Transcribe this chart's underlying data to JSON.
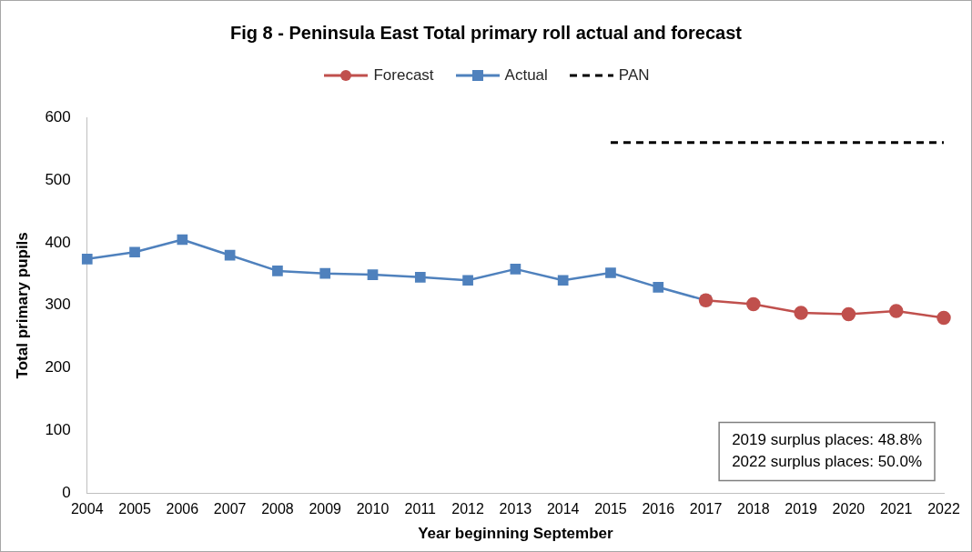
{
  "chart_data": {
    "type": "line",
    "title": "Fig 8 - Peninsula East Total primary roll actual and forecast",
    "xlabel": "Year beginning September",
    "ylabel": "Total primary pupils",
    "categories": [
      "2004",
      "2005",
      "2006",
      "2007",
      "2008",
      "2009",
      "2010",
      "2011",
      "2012",
      "2013",
      "2014",
      "2015",
      "2016",
      "2017",
      "2018",
      "2019",
      "2020",
      "2021",
      "2022"
    ],
    "series": [
      {
        "name": "Forecast",
        "color": "#c0504d",
        "marker": "circle",
        "line_style": "solid",
        "values": [
          null,
          null,
          null,
          null,
          null,
          null,
          null,
          null,
          null,
          null,
          null,
          null,
          null,
          308,
          302,
          288,
          286,
          291,
          280
        ]
      },
      {
        "name": "Actual",
        "color": "#4f81bd",
        "marker": "square",
        "line_style": "solid",
        "values": [
          374,
          385,
          405,
          380,
          355,
          351,
          349,
          345,
          340,
          358,
          340,
          352,
          329,
          308,
          null,
          null,
          null,
          null,
          null
        ]
      },
      {
        "name": "PAN",
        "color": "#000000",
        "marker": "none",
        "line_style": "dashed",
        "values": [
          null,
          null,
          null,
          null,
          null,
          null,
          null,
          null,
          null,
          null,
          null,
          560,
          560,
          560,
          560,
          560,
          560,
          560,
          560
        ]
      }
    ],
    "ylim": [
      0,
      600
    ],
    "yticks": [
      0,
      100,
      200,
      300,
      400,
      500,
      600
    ],
    "legend": "top",
    "annotations": [
      "2019 surplus places: 48.8%",
      "2022 surplus places: 50.0%"
    ]
  }
}
